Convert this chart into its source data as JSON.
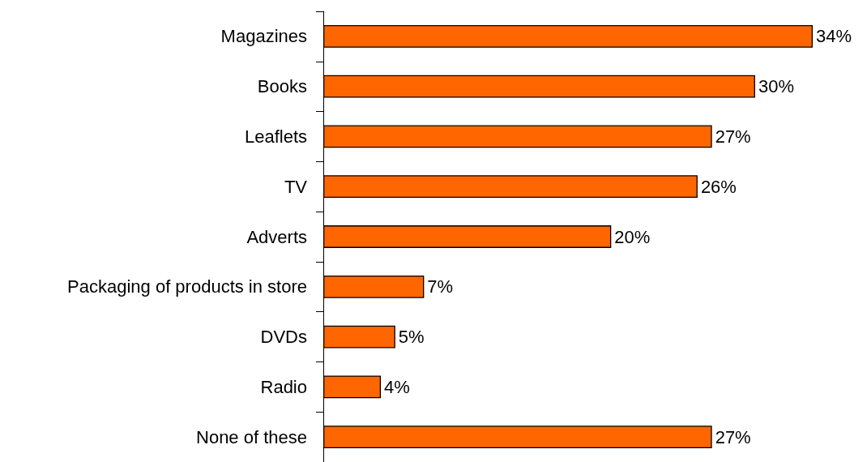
{
  "chart_data": {
    "type": "bar",
    "orientation": "horizontal",
    "categories": [
      "Magazines",
      "Books",
      "Leaflets",
      "TV",
      "Adverts",
      "Packaging of products in store",
      "DVDs",
      "Radio",
      "None of these"
    ],
    "values": [
      34,
      30,
      27,
      26,
      20,
      7,
      5,
      4,
      27
    ],
    "value_labels": [
      "34%",
      "30%",
      "27%",
      "26%",
      "20%",
      "7%",
      "5%",
      "4%",
      "27%"
    ],
    "color": "#ff6600"
  }
}
